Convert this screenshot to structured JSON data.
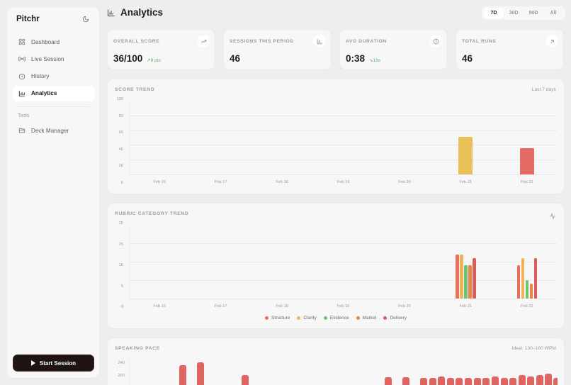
{
  "app": {
    "name": "Pitchr",
    "theme_toggle_icon": "moon-icon"
  },
  "sidebar": {
    "items": [
      {
        "label": "Dashboard",
        "icon": "grid-icon",
        "active": false
      },
      {
        "label": "Live Session",
        "icon": "broadcast-icon",
        "active": false
      },
      {
        "label": "History",
        "icon": "clock-icon",
        "active": false
      },
      {
        "label": "Analytics",
        "icon": "bar-chart-icon",
        "active": true
      }
    ],
    "section_label": "Tools",
    "tools": [
      {
        "label": "Deck Manager",
        "icon": "folder-icon"
      }
    ],
    "start_button": "Start Session"
  },
  "header": {
    "title": "Analytics",
    "ranges": [
      {
        "label": "7D",
        "active": true
      },
      {
        "label": "30D",
        "active": false
      },
      {
        "label": "90D",
        "active": false
      },
      {
        "label": "All",
        "active": false
      }
    ]
  },
  "stats": [
    {
      "label": "OVERALL SCORE",
      "value": "36/100",
      "delta": "↗8 pts",
      "icon": "trend-up-icon"
    },
    {
      "label": "SESSIONS THIS PERIOD",
      "value": "46",
      "delta": "",
      "icon": "bar-chart-icon"
    },
    {
      "label": "AVG DURATION",
      "value": "0:38",
      "delta": "↘13s",
      "icon": "clock-icon"
    },
    {
      "label": "TOTAL RUNS",
      "value": "46",
      "delta": "",
      "icon": "arrow-up-right-icon"
    }
  ],
  "score_trend": {
    "title": "SCORE TREND",
    "note": "Last 7 days"
  },
  "rubric_trend": {
    "title": "RUBRIC CATEGORY TREND",
    "icon": "activity-icon"
  },
  "speaking_pace": {
    "title": "SPEAKING PACE",
    "note": "Ideal: 130–160 WPM"
  },
  "colors": {
    "structure": "#e8705f",
    "clarity": "#f0b25b",
    "evidence": "#6cc46f",
    "market": "#e98443",
    "delivery": "#dc5b5b",
    "score_mid": "#e8c258",
    "score_low": "#e46a64",
    "pace": "#e06462"
  },
  "chart_data": [
    {
      "type": "bar",
      "title": "SCORE TREND",
      "categories": [
        "Feb 16",
        "Feb 17",
        "Feb 18",
        "Feb 19",
        "Feb 20",
        "Feb 21",
        "Feb 22"
      ],
      "values": [
        0,
        0,
        0,
        0,
        0,
        51,
        36
      ],
      "yticks": [
        0,
        20,
        40,
        60,
        80,
        100
      ],
      "ylim": [
        0,
        100
      ],
      "annotation": "Last 7 days"
    },
    {
      "type": "bar",
      "title": "RUBRIC CATEGORY TREND",
      "categories": [
        "Feb 16",
        "Feb 17",
        "Feb 18",
        "Feb 19",
        "Feb 20",
        "Feb 21",
        "Feb 22"
      ],
      "series": [
        {
          "name": "Structure",
          "values": [
            0,
            0,
            0,
            0,
            0,
            12,
            9
          ]
        },
        {
          "name": "Clarity",
          "values": [
            0,
            0,
            0,
            0,
            0,
            12,
            11
          ]
        },
        {
          "name": "Evidence",
          "values": [
            0,
            0,
            0,
            0,
            0,
            9,
            5
          ]
        },
        {
          "name": "Market",
          "values": [
            0,
            0,
            0,
            0,
            0,
            9,
            4
          ]
        },
        {
          "name": "Delivery",
          "values": [
            0,
            0,
            0,
            0,
            0,
            11,
            11
          ]
        }
      ],
      "yticks": [
        0,
        5,
        10,
        15,
        20
      ],
      "ylim": [
        0,
        20
      ],
      "legend_position": "bottom"
    },
    {
      "type": "bar",
      "title": "SPEAKING PACE",
      "annotation": "Ideal: 130–160 WPM",
      "yticks_visible": [
        200,
        240
      ],
      "values": [
        235,
        244,
        205,
        198,
        198,
        196,
        196,
        199,
        196,
        196,
        196,
        196,
        196,
        199,
        196,
        196,
        205,
        201,
        205,
        209,
        196,
        201
      ]
    }
  ]
}
